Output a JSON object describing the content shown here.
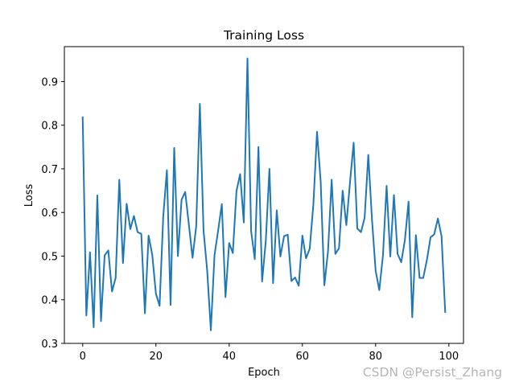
{
  "chart_data": {
    "type": "line",
    "title": "Training Loss",
    "xlabel": "Epoch",
    "ylabel": "Loss",
    "xlim": [
      -5,
      104
    ],
    "ylim": [
      0.3,
      0.98
    ],
    "xticks": [
      0,
      20,
      40,
      60,
      80,
      100
    ],
    "yticks": [
      0.3,
      0.4,
      0.5,
      0.6,
      0.7,
      0.8,
      0.9
    ],
    "xtick_labels": [
      "0",
      "20",
      "40",
      "60",
      "80",
      "100"
    ],
    "ytick_labels": [
      "0.3",
      "0.4",
      "0.5",
      "0.6",
      "0.7",
      "0.8",
      "0.9"
    ],
    "grid": false,
    "line_color": "#1f77b4",
    "series": [
      {
        "x": [
          0,
          1,
          2,
          3,
          4,
          5,
          6,
          7,
          8,
          9,
          10,
          11,
          12,
          13,
          14,
          15,
          16,
          17,
          18,
          19,
          20,
          21,
          22,
          23,
          24,
          25,
          26,
          27,
          28,
          29,
          30,
          31,
          32,
          33,
          34,
          35,
          36,
          37,
          38,
          39,
          40,
          41,
          42,
          43,
          44,
          45,
          46,
          47,
          48,
          49,
          50,
          51,
          52,
          53,
          54,
          55,
          56,
          57,
          58,
          59,
          60,
          61,
          62,
          63,
          64,
          65,
          66,
          67,
          68,
          69,
          70,
          71,
          72,
          73,
          74,
          75,
          76,
          77,
          78,
          79,
          80,
          81,
          82,
          83,
          84,
          85,
          86,
          87,
          88,
          89,
          90,
          91,
          92,
          93,
          94,
          95,
          96,
          97,
          98,
          99
        ],
        "values": [
          0.818,
          0.364,
          0.509,
          0.337,
          0.639,
          0.351,
          0.502,
          0.513,
          0.419,
          0.45,
          0.675,
          0.484,
          0.62,
          0.562,
          0.592,
          0.555,
          0.551,
          0.369,
          0.547,
          0.503,
          0.414,
          0.386,
          0.591,
          0.697,
          0.388,
          0.748,
          0.5,
          0.629,
          0.647,
          0.572,
          0.496,
          0.568,
          0.849,
          0.559,
          0.467,
          0.33,
          0.502,
          0.559,
          0.619,
          0.406,
          0.53,
          0.507,
          0.649,
          0.688,
          0.577,
          0.953,
          0.557,
          0.493,
          0.75,
          0.442,
          0.534,
          0.7,
          0.438,
          0.605,
          0.499,
          0.546,
          0.549,
          0.443,
          0.451,
          0.432,
          0.547,
          0.495,
          0.517,
          0.618,
          0.785,
          0.67,
          0.433,
          0.511,
          0.675,
          0.505,
          0.518,
          0.65,
          0.571,
          0.669,
          0.76,
          0.563,
          0.555,
          0.588,
          0.732,
          0.585,
          0.467,
          0.422,
          0.501,
          0.661,
          0.499,
          0.64,
          0.505,
          0.486,
          0.537,
          0.625,
          0.36,
          0.548,
          0.45,
          0.45,
          0.491,
          0.543,
          0.55,
          0.586,
          0.546,
          0.372
        ]
      }
    ]
  },
  "watermark": "CSDN @Persist_Zhang"
}
